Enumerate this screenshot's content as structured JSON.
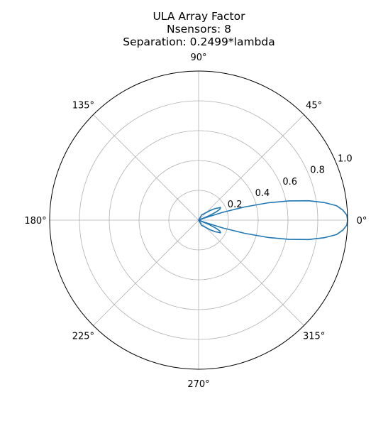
{
  "chart_data": {
    "type": "polar-line",
    "title_lines": [
      "ULA Array Factor",
      "Nsensors: 8",
      "Separation: 0.2499*lambda"
    ],
    "angular_ticks": [
      {
        "deg": 0,
        "label": "0°"
      },
      {
        "deg": 45,
        "label": "45°"
      },
      {
        "deg": 90,
        "label": "90°"
      },
      {
        "deg": 135,
        "label": "135°"
      },
      {
        "deg": 180,
        "label": "180°"
      },
      {
        "deg": 225,
        "label": "225°"
      },
      {
        "deg": 270,
        "label": "270°"
      },
      {
        "deg": 315,
        "label": "315°"
      }
    ],
    "radial_ticks": [
      {
        "r": 0.2,
        "label": "0.2"
      },
      {
        "r": 0.4,
        "label": "0.4"
      },
      {
        "r": 0.6,
        "label": "0.6"
      },
      {
        "r": 0.8,
        "label": "0.8"
      },
      {
        "r": 1.0,
        "label": "1.0"
      }
    ],
    "rlim": [
      0,
      1.0
    ],
    "grid": true,
    "series": [
      {
        "color": "#1f77b4",
        "points": [
          {
            "theta": -90,
            "r": 0.0
          },
          {
            "theta": -60,
            "r": 0.04
          },
          {
            "theta": -40,
            "r": 0.1
          },
          {
            "theta": -35,
            "r": 0.135
          },
          {
            "theta": -30,
            "r": 0.17
          },
          {
            "theta": -27,
            "r": 0.16
          },
          {
            "theta": -25,
            "r": 0.13
          },
          {
            "theta": -23,
            "r": 0.08
          },
          {
            "theta": -21,
            "r": 0.0
          },
          {
            "theta": -20,
            "r": 0.04
          },
          {
            "theta": -18,
            "r": 0.17
          },
          {
            "theta": -16,
            "r": 0.32
          },
          {
            "theta": -14,
            "r": 0.48
          },
          {
            "theta": -12,
            "r": 0.62
          },
          {
            "theta": -10,
            "r": 0.75
          },
          {
            "theta": -8,
            "r": 0.85
          },
          {
            "theta": -6,
            "r": 0.93
          },
          {
            "theta": -4,
            "r": 0.97
          },
          {
            "theta": -2,
            "r": 0.995
          },
          {
            "theta": 0,
            "r": 1.0
          },
          {
            "theta": 2,
            "r": 0.995
          },
          {
            "theta": 4,
            "r": 0.97
          },
          {
            "theta": 6,
            "r": 0.93
          },
          {
            "theta": 8,
            "r": 0.85
          },
          {
            "theta": 10,
            "r": 0.75
          },
          {
            "theta": 12,
            "r": 0.62
          },
          {
            "theta": 14,
            "r": 0.48
          },
          {
            "theta": 16,
            "r": 0.32
          },
          {
            "theta": 18,
            "r": 0.17
          },
          {
            "theta": 20,
            "r": 0.04
          },
          {
            "theta": 21,
            "r": 0.0
          },
          {
            "theta": 23,
            "r": 0.08
          },
          {
            "theta": 25,
            "r": 0.13
          },
          {
            "theta": 27,
            "r": 0.16
          },
          {
            "theta": 30,
            "r": 0.17
          },
          {
            "theta": 35,
            "r": 0.135
          },
          {
            "theta": 40,
            "r": 0.1
          },
          {
            "theta": 60,
            "r": 0.04
          },
          {
            "theta": 90,
            "r": 0.0
          }
        ]
      }
    ]
  }
}
